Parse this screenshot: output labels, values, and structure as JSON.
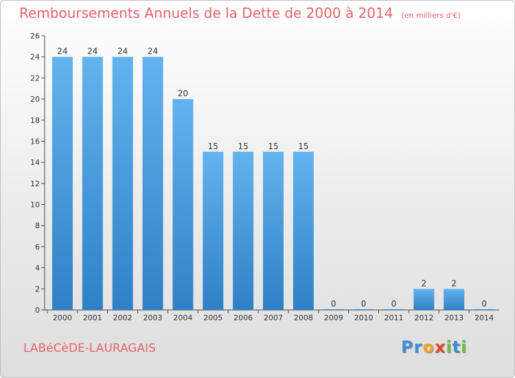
{
  "header": {
    "title": "Remboursements Annuels de la Dette de 2000 à 2014",
    "subtitle": "(en milliers d'€)"
  },
  "footer": {
    "town": "LABéCèDE-LAURAGAIS",
    "logo_letters": [
      {
        "ch": "P",
        "color": "#3d8fd6"
      },
      {
        "ch": "r",
        "color": "#3d8fd6"
      },
      {
        "ch": "o",
        "color": "#f2a32a"
      },
      {
        "ch": "x",
        "color": "#e8412c"
      },
      {
        "ch": "i",
        "color": "#6cbf3c"
      },
      {
        "ch": "t",
        "color": "#3d8fd6"
      },
      {
        "ch": "i",
        "color": "#6cbf3c"
      }
    ]
  },
  "chart_data": {
    "type": "bar",
    "categories": [
      "2000",
      "2001",
      "2002",
      "2003",
      "2004",
      "2005",
      "2006",
      "2007",
      "2008",
      "2009",
      "2010",
      "2011",
      "2012",
      "2013",
      "2014"
    ],
    "values": [
      24,
      24,
      24,
      24,
      20,
      15,
      15,
      15,
      15,
      0,
      0,
      0,
      2,
      2,
      0
    ],
    "data_labels": [
      "24",
      "24",
      "24",
      "24",
      "20",
      "15",
      "15",
      "15",
      "15",
      "0",
      "0",
      "0",
      "2",
      "2",
      "0"
    ],
    "yticks": [
      0,
      2,
      4,
      6,
      8,
      10,
      12,
      14,
      16,
      18,
      20,
      22,
      24,
      26
    ],
    "ylim": [
      0,
      26
    ],
    "grid": false,
    "colors": {
      "bar_top": "#63b3ee",
      "bar_bottom": "#2f80c6",
      "axis": "#444444",
      "text": "#333333"
    }
  }
}
